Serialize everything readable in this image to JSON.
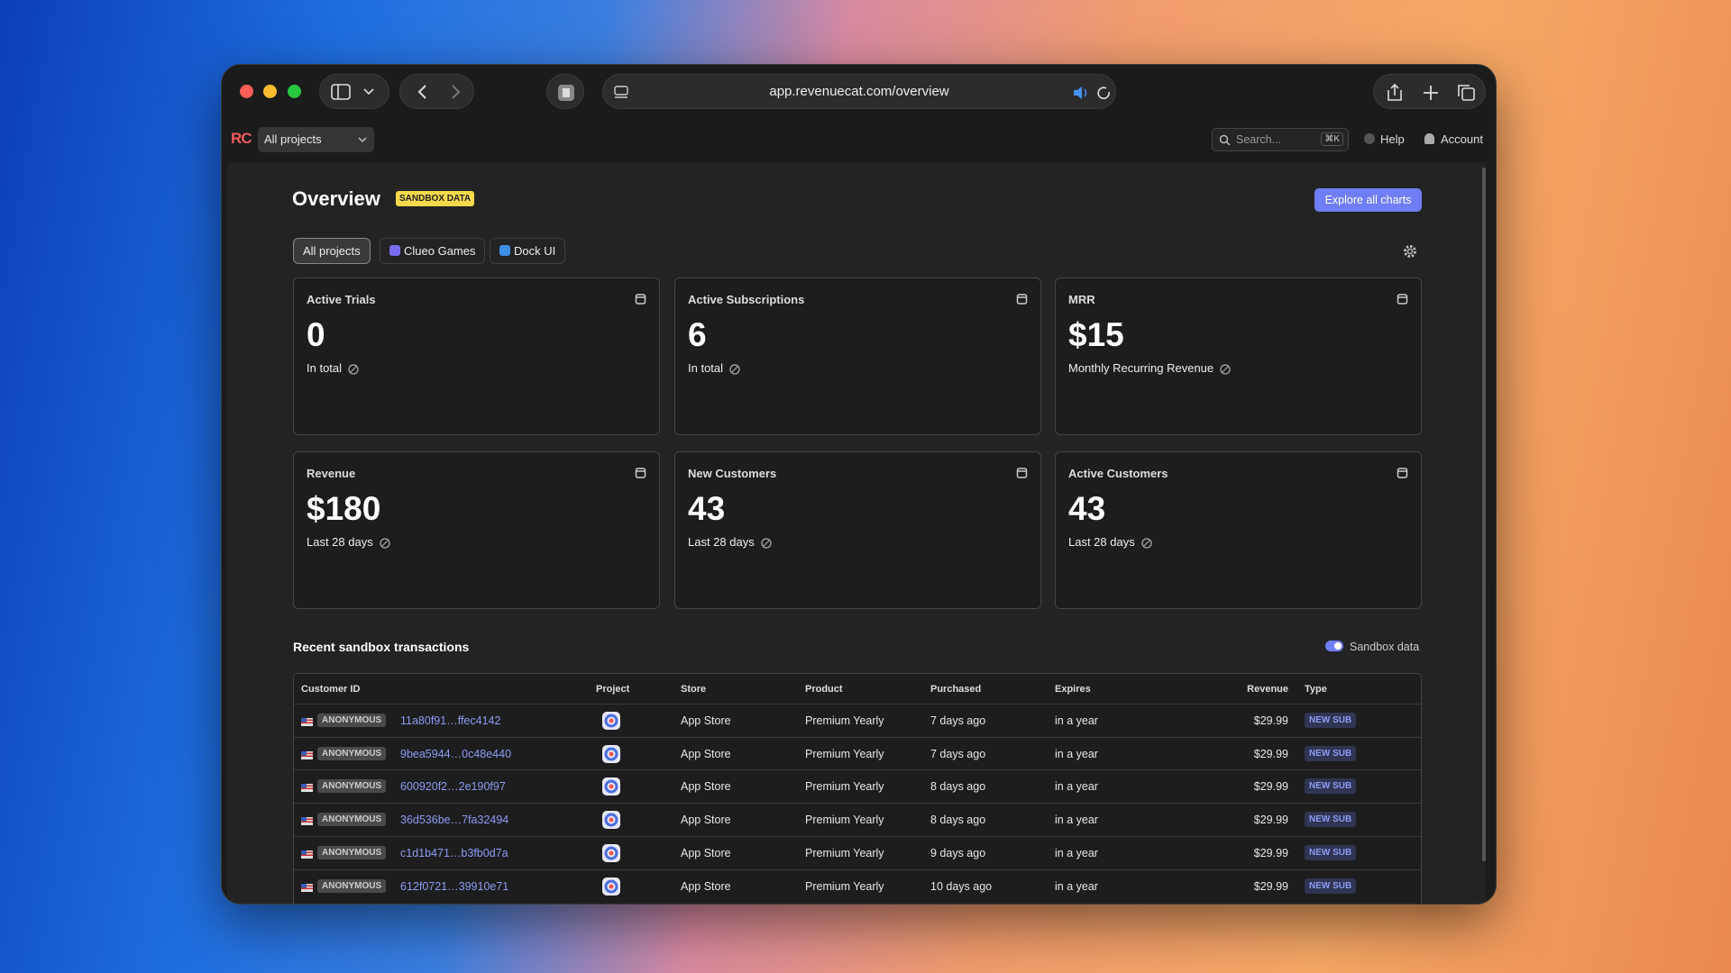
{
  "browser": {
    "url": "app.revenuecat.com/overview"
  },
  "header": {
    "logo": "RC",
    "project_selector": "All projects",
    "search_placeholder": "Search...",
    "search_shortcut": "⌘K",
    "help": "Help",
    "account": "Account"
  },
  "page": {
    "title": "Overview",
    "badge": "SANDBOX DATA",
    "action": "Explore all charts",
    "tabs": [
      "All projects",
      "Clueo Games",
      "Dock UI"
    ]
  },
  "cards": [
    {
      "title": "Active Trials",
      "value": "0",
      "caption": "In total"
    },
    {
      "title": "Active Subscriptions",
      "value": "6",
      "caption": "In total"
    },
    {
      "title": "MRR",
      "value": "$15",
      "caption": "Monthly Recurring Revenue"
    },
    {
      "title": "Revenue",
      "value": "$180",
      "caption": "Last 28 days"
    },
    {
      "title": "New Customers",
      "value": "43",
      "caption": "Last 28 days"
    },
    {
      "title": "Active Customers",
      "value": "43",
      "caption": "Last 28 days"
    }
  ],
  "transactions": {
    "title": "Recent sandbox transactions",
    "toggle": "Sandbox data",
    "columns": [
      "Customer ID",
      "Project",
      "Store",
      "Product",
      "Purchased",
      "Expires",
      "Revenue",
      "Type"
    ],
    "rows": [
      [
        "ANONYMOUS",
        "11a80f91…ffec4142",
        "App Store",
        "Premium Yearly",
        "7 days ago",
        "in a year",
        "$29.99",
        "NEW SUB"
      ],
      [
        "ANONYMOUS",
        "9bea5944…0c48e440",
        "App Store",
        "Premium Yearly",
        "7 days ago",
        "in a year",
        "$29.99",
        "NEW SUB"
      ],
      [
        "ANONYMOUS",
        "600920f2…2e190f97",
        "App Store",
        "Premium Yearly",
        "8 days ago",
        "in a year",
        "$29.99",
        "NEW SUB"
      ],
      [
        "ANONYMOUS",
        "36d536be…7fa32494",
        "App Store",
        "Premium Yearly",
        "8 days ago",
        "in a year",
        "$29.99",
        "NEW SUB"
      ],
      [
        "ANONYMOUS",
        "c1d1b471…b3fb0d7a",
        "App Store",
        "Premium Yearly",
        "9 days ago",
        "in a year",
        "$29.99",
        "NEW SUB"
      ],
      [
        "ANONYMOUS",
        "612f0721…39910e71",
        "App Store",
        "Premium Yearly",
        "10 days ago",
        "in a year",
        "$29.99",
        "NEW SUB"
      ]
    ]
  }
}
